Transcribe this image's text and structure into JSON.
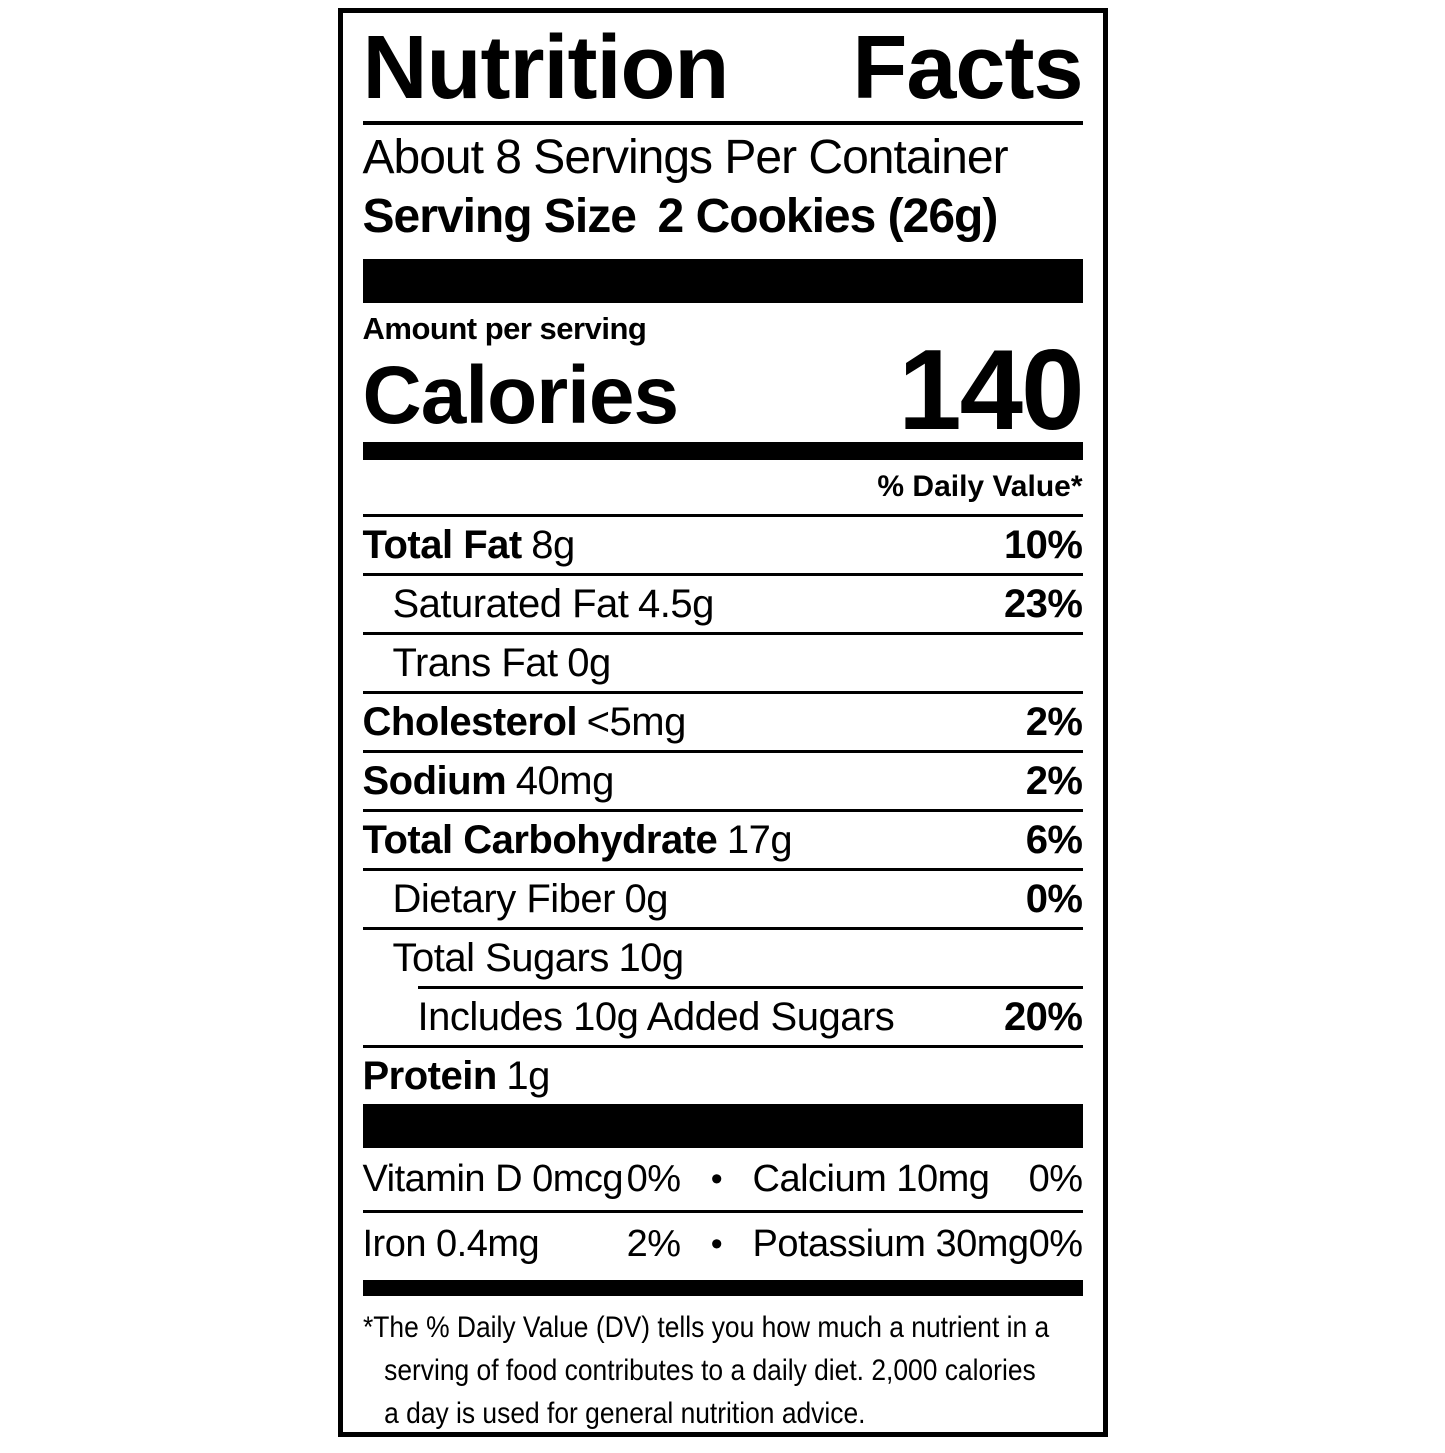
{
  "label": {
    "title": "Nutrition Facts",
    "servings_per_container": "About 8 Servings Per Container",
    "serving_size_label": "Serving Size",
    "serving_size_value": "2 Cookies (26g)",
    "amount_per_serving": "Amount per serving",
    "calories_label": "Calories",
    "calories_value": "140",
    "daily_value_header": "% Daily Value*",
    "bullet": "•",
    "colors": {
      "text": "#000000",
      "background": "#ffffff"
    },
    "nutrients": [
      {
        "name": "Total Fat",
        "amount": "8g",
        "dv": "10%"
      },
      {
        "name": "Saturated Fat",
        "amount": "4.5g",
        "dv": "23%"
      },
      {
        "name": "Trans Fat",
        "amount": "0g",
        "dv": ""
      },
      {
        "name": "Cholesterol",
        "amount": "<5mg",
        "dv": "2%"
      },
      {
        "name": "Sodium",
        "amount": "40mg",
        "dv": "2%"
      },
      {
        "name": "Total Carbohydrate",
        "amount": "17g",
        "dv": "6%"
      },
      {
        "name": "Dietary Fiber",
        "amount": "0g",
        "dv": "0%"
      },
      {
        "name": "Total Sugars",
        "amount": "10g",
        "dv": ""
      },
      {
        "name": "Includes 10g Added Sugars",
        "amount": "",
        "dv": "20%"
      },
      {
        "name": "Protein",
        "amount": "1g",
        "dv": ""
      }
    ],
    "micronutrients": [
      {
        "left_name": "Vitamin D 0mcg",
        "left_dv": "0%",
        "right_name": "Calcium 10mg",
        "right_dv": "0%"
      },
      {
        "left_name": "Iron 0.4mg",
        "left_dv": "2%",
        "right_name": "Potassium 30mg",
        "right_dv": "0%"
      }
    ],
    "footnote_lines": [
      "*The % Daily Value (DV) tells you how much a nutrient in a",
      "serving of food contributes to a daily diet. 2,000 calories",
      "a day is used for general nutrition advice."
    ]
  }
}
